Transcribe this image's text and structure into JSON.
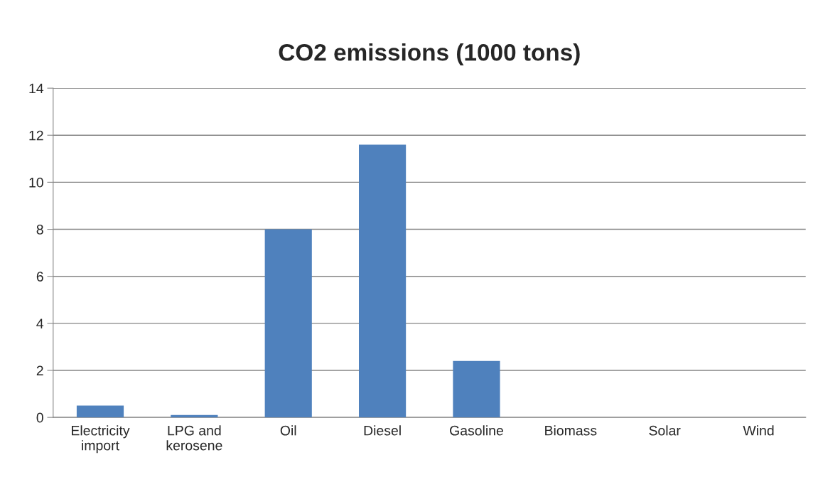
{
  "chart_data": {
    "type": "bar",
    "title": "CO2 emissions (1000 tons)",
    "categories": [
      "Electricity\nimport",
      "LPG and\nkerosene",
      "Oil",
      "Diesel",
      "Gasoline",
      "Biomass",
      "Solar",
      "Wind"
    ],
    "values": [
      0.5,
      0.1,
      8.0,
      11.6,
      2.4,
      0,
      0,
      0
    ],
    "color": "#4f81bd",
    "ylim": [
      0,
      14
    ],
    "yticks": [
      0,
      2,
      4,
      6,
      8,
      10,
      12,
      14
    ],
    "grid": "y"
  }
}
